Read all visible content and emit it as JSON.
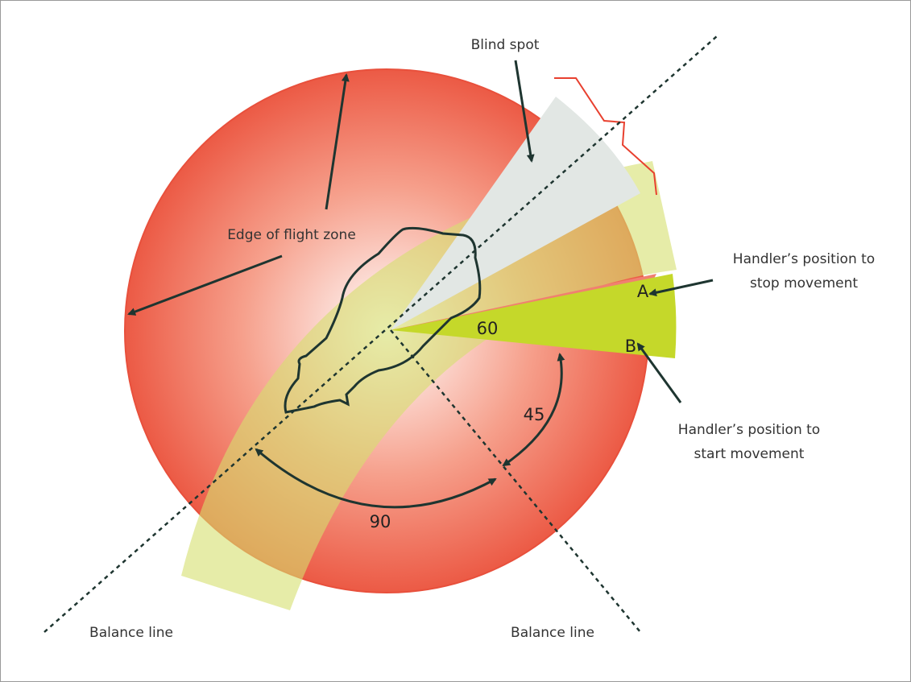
{
  "labels": {
    "blind_spot": "Blind spot",
    "flight_zone": "Edge of flight zone",
    "stop": [
      "Handler’s position to",
      "stop movement"
    ],
    "start": [
      "Handler’s position to",
      "start movement"
    ],
    "point_a": "A",
    "point_b": "B",
    "angle_60": "60",
    "angle_45": "45",
    "angle_90": "90",
    "balance_left": "Balance line",
    "balance_right": "Balance line"
  }
}
